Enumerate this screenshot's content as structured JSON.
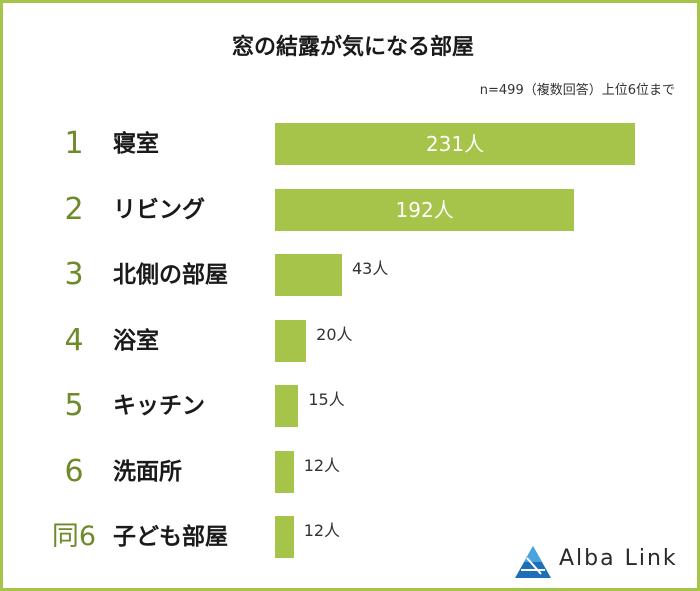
{
  "chart_data": {
    "type": "bar",
    "orientation": "horizontal",
    "title": "窓の結露が気になる部屋",
    "note": "n=499（複数回答）上位6位まで",
    "unit": "人",
    "xlim": [
      0,
      231
    ],
    "grid": false,
    "bar_color": "#a6c34a",
    "rank_color": "#6e8a2a",
    "categories": [
      "寝室",
      "リビング",
      "北側の部屋",
      "浴室",
      "キッチン",
      "洗面所",
      "子ども部屋"
    ],
    "ranks": [
      "1",
      "2",
      "3",
      "4",
      "5",
      "6",
      "同6"
    ],
    "values": [
      231,
      192,
      43,
      20,
      15,
      12,
      12
    ],
    "value_labels": [
      "231人",
      "192人",
      "43人",
      "20人",
      "15人",
      "12人",
      "12人"
    ]
  },
  "logo": {
    "text": "Alba Link"
  }
}
